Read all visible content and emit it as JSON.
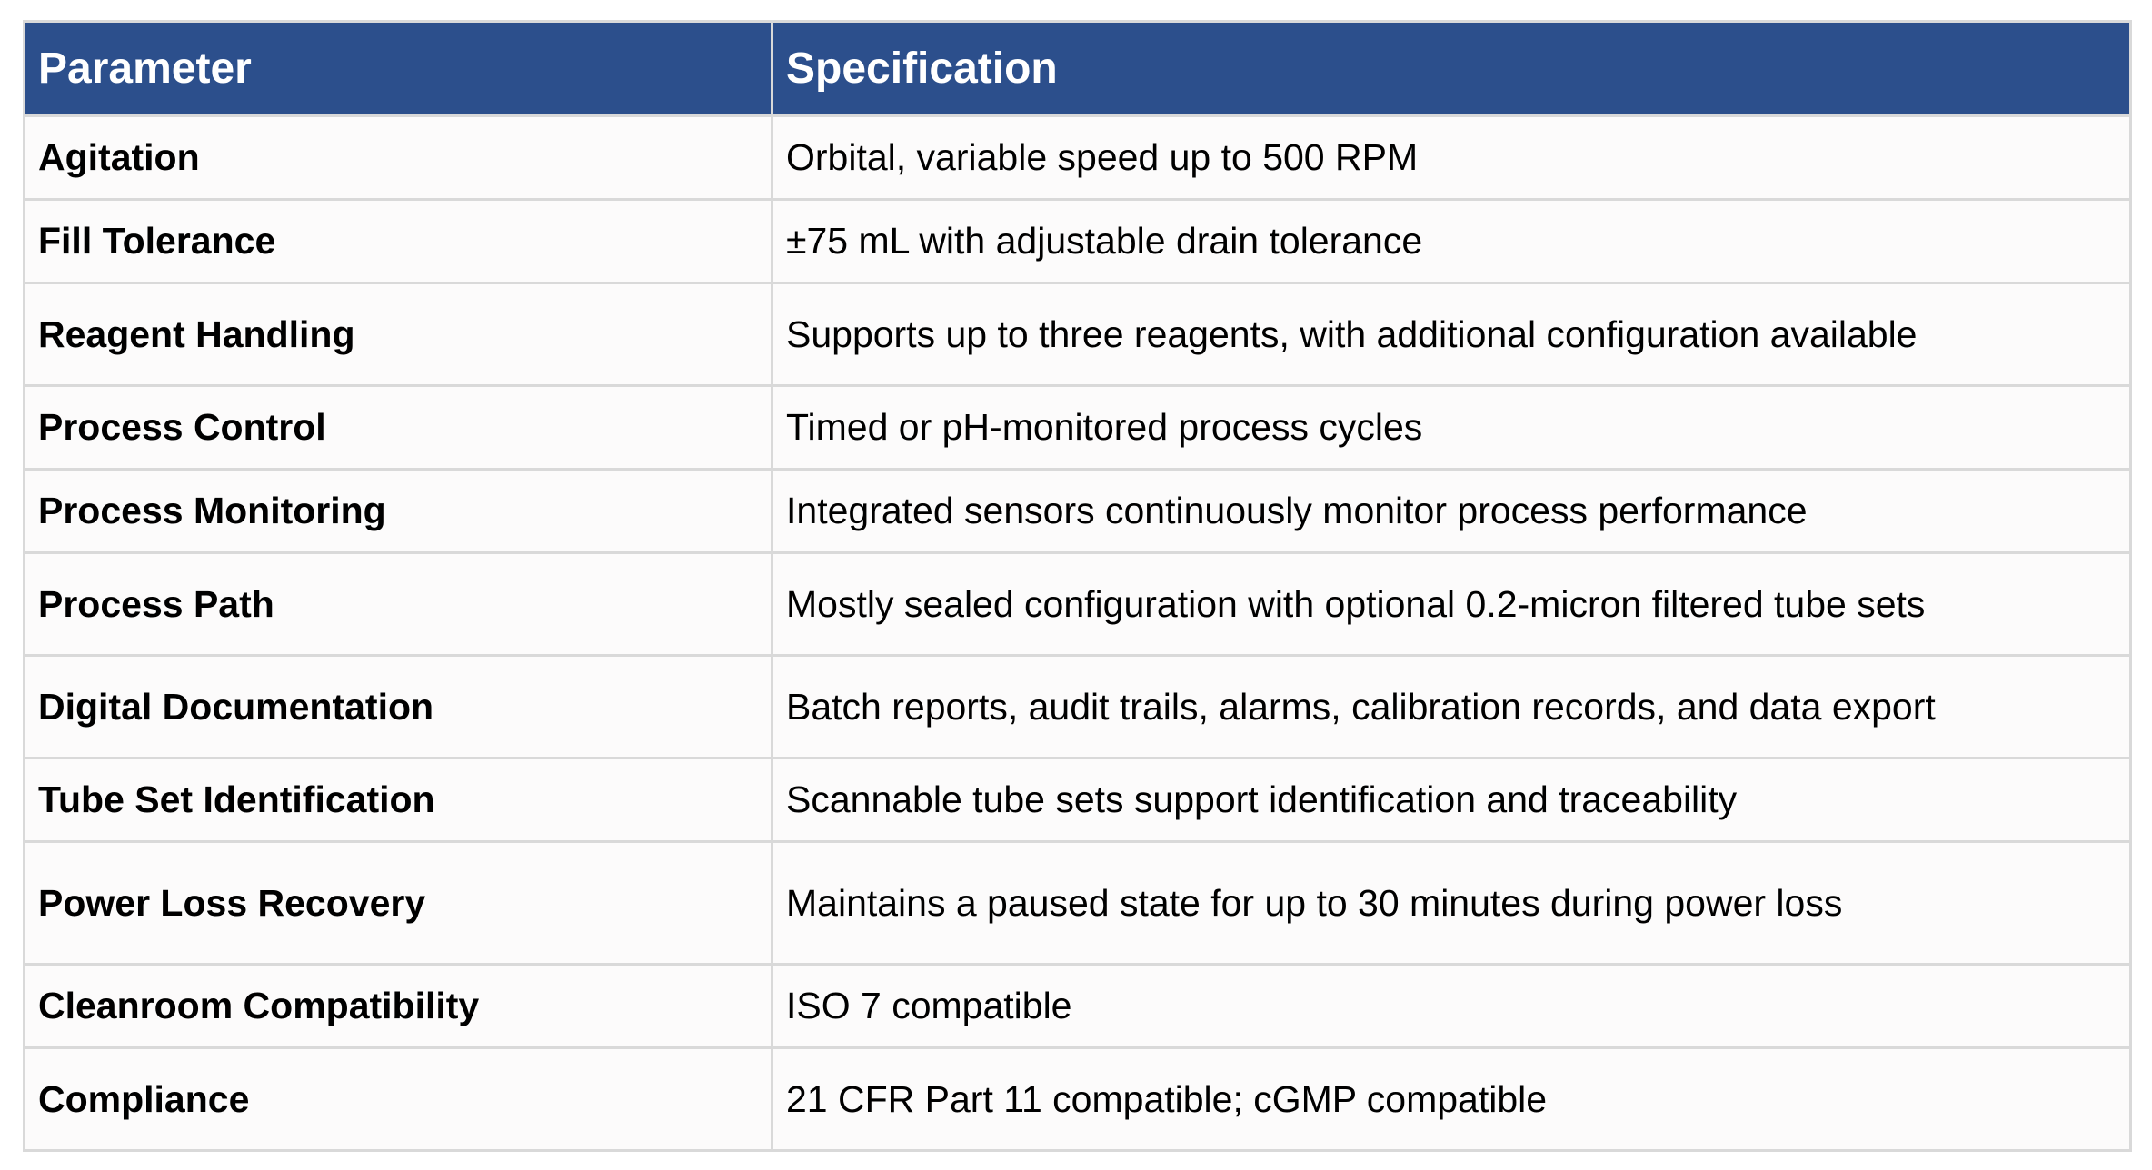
{
  "table": {
    "headers": {
      "parameter": "Parameter",
      "specification": "Specification"
    },
    "rows": [
      {
        "parameter": "Agitation",
        "specification": "Orbital, variable speed up to 500 RPM"
      },
      {
        "parameter": "Fill Tolerance",
        "specification": "±75 mL with adjustable drain tolerance"
      },
      {
        "parameter": "Reagent Handling",
        "specification": "Supports up to three reagents, with additional configuration available"
      },
      {
        "parameter": "Process Control",
        "specification": "Timed or pH-monitored process cycles"
      },
      {
        "parameter": "Process Monitoring",
        "specification": "Integrated sensors continuously monitor process performance"
      },
      {
        "parameter": "Process Path",
        "specification": "Mostly sealed configuration with optional 0.2-micron filtered tube sets"
      },
      {
        "parameter": "Digital Documentation",
        "specification": "Batch reports, audit trails, alarms, calibration records, and data export"
      },
      {
        "parameter": "Tube Set Identification",
        "specification": "Scannable tube sets support identification and traceability"
      },
      {
        "parameter": "Power Loss Recovery",
        "specification": "Maintains a paused state for up to 30 minutes during power loss"
      },
      {
        "parameter": "Cleanroom Compatibility",
        "specification": "ISO 7 compatible"
      },
      {
        "parameter": "Compliance",
        "specification": "21 CFR Part 11 compatible; cGMP compatible"
      }
    ]
  },
  "colors": {
    "header_background": "#2c4f8c",
    "header_text": "#ffffff",
    "cell_background": "#fcfbfb",
    "border": "#d9d9d9"
  }
}
